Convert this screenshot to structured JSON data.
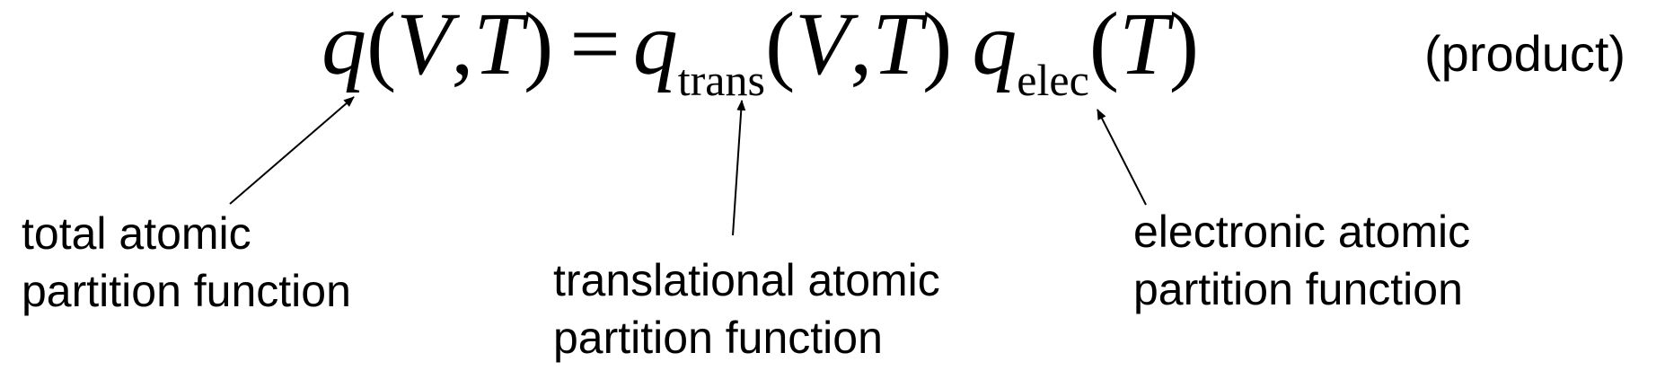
{
  "equation": {
    "lhs_symbol": "q",
    "lhs_open": "(",
    "lhs_var1": "V",
    "lhs_comma": ",",
    "lhs_var2": "T",
    "lhs_close": ")",
    "equals": "=",
    "trans_symbol": "q",
    "trans_subscript": "trans",
    "trans_open": "(",
    "trans_var1": "V",
    "trans_comma": ",",
    "trans_var2": "T",
    "trans_close": ")",
    "elec_symbol": "q",
    "elec_subscript": "elec",
    "elec_open": "(",
    "elec_var": "T",
    "elec_close": ")"
  },
  "note": "(product)",
  "labels": {
    "total": {
      "line1": "total atomic",
      "line2": "partition function"
    },
    "translational": {
      "line1": "translational atomic",
      "line2": "partition function"
    },
    "electronic": {
      "line1": "electronic atomic",
      "line2": "partition function"
    }
  },
  "arrow_color": "#000000"
}
